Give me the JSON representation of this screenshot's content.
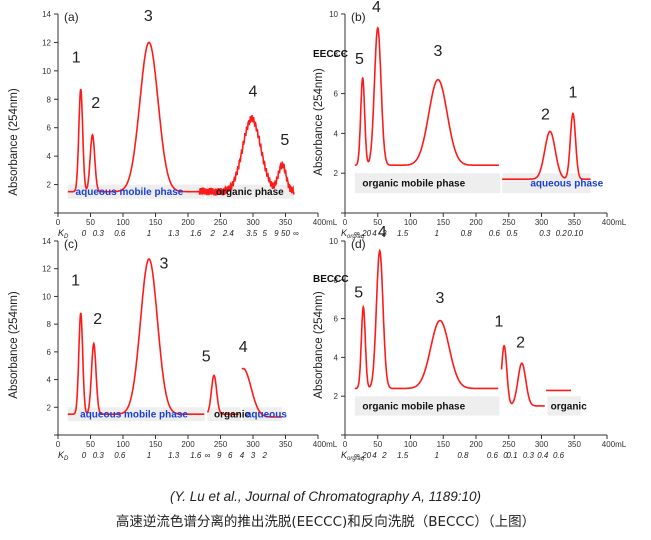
{
  "chart_data": [
    {
      "type": "line",
      "panel_label": "(a)",
      "ylabel": "Absorbance (254nm)",
      "xunit": "mL",
      "xlim": [
        0,
        400
      ],
      "ylim": [
        0,
        14
      ],
      "xticks": [
        0,
        50,
        100,
        150,
        200,
        250,
        300,
        350,
        400
      ],
      "yticks": [
        0,
        2,
        4,
        6,
        8,
        10,
        12,
        14
      ],
      "yticks_labeled": [
        2,
        4,
        6,
        8,
        10,
        12,
        14
      ],
      "k_axis_label": "K",
      "k_axis_sub": "D",
      "k_ticks": [
        {
          "x": 40,
          "t": "0"
        },
        {
          "x": 62,
          "t": "0.3"
        },
        {
          "x": 95,
          "t": "0.6"
        },
        {
          "x": 140,
          "t": "1"
        },
        {
          "x": 178,
          "t": "1.3"
        },
        {
          "x": 212,
          "t": "1.6"
        },
        {
          "x": 238,
          "t": "2"
        },
        {
          "x": 262,
          "t": "2.4"
        },
        {
          "x": 298,
          "t": "3.5"
        },
        {
          "x": 318,
          "t": "5"
        },
        {
          "x": 336,
          "t": "9"
        },
        {
          "x": 350,
          "t": "50"
        },
        {
          "x": 366,
          "t": "∞"
        }
      ],
      "baseline": 1.5,
      "baseline_segments": [
        [
          15,
          225,
          1.5
        ],
        [
          225,
          363,
          1.5
        ]
      ],
      "noisy_from": 218,
      "series": [
        {
          "values": [
            {
              "x": 35,
              "y": 8.7,
              "w": 3
            },
            {
              "x": 53,
              "y": 5.5,
              "w": 3.5
            },
            {
              "x": 140,
              "y": 12.0,
              "w": 14
            },
            {
              "x": 298,
              "y": 6.6,
              "w": 14
            },
            {
              "x": 345,
              "y": 3.4,
              "w": 6
            }
          ]
        }
      ],
      "peak_labels": [
        {
          "t": "1",
          "x": 28,
          "y": 10.6
        },
        {
          "t": "2",
          "x": 58,
          "y": 7.4
        },
        {
          "t": "3",
          "x": 139,
          "y": 13.5
        },
        {
          "t": "4",
          "x": 300,
          "y": 8.2
        },
        {
          "t": "5",
          "x": 349,
          "y": 4.8
        }
      ],
      "phase_bars": [
        {
          "x0": 15,
          "x1": 225,
          "text": "aqueous mobile phase",
          "color": "#1a3fd6",
          "align": "start",
          "tx": 27
        },
        {
          "x0": 228,
          "x1": 363,
          "text": "organic phase",
          "color": "#111111",
          "align": "start",
          "tx": 243
        }
      ]
    },
    {
      "type": "line",
      "panel_label": "(b)",
      "ylabel": "Absorbance (254nm)",
      "mode_label": "EECCC",
      "xunit": "mL",
      "xlim": [
        0,
        400
      ],
      "ylim": [
        0,
        10
      ],
      "xticks": [
        0,
        50,
        100,
        150,
        200,
        250,
        300,
        350,
        400
      ],
      "yticks": [
        0,
        2,
        4,
        6,
        8,
        10
      ],
      "yticks_labeled": [
        2,
        4,
        6,
        8,
        10
      ],
      "k_axis_label": "K",
      "k_axis_sub": "org/aq",
      "k_ticks": [
        {
          "x": 18,
          "t": "∞"
        },
        {
          "x": 33,
          "t": "20"
        },
        {
          "x": 45,
          "t": "4"
        },
        {
          "x": 60,
          "t": "2"
        },
        {
          "x": 88,
          "t": "1.5"
        },
        {
          "x": 140,
          "t": "1"
        },
        {
          "x": 185,
          "t": "0.8"
        },
        {
          "x": 228,
          "t": "0.6"
        },
        {
          "x": 255,
          "t": "0.5"
        },
        {
          "x": 305,
          "t": "0.3"
        },
        {
          "x": 330,
          "t": "0.2"
        },
        {
          "x": 348,
          "t": "0.1"
        },
        {
          "x": 360,
          "t": "0"
        }
      ],
      "baseline_segments": [
        [
          15,
          235,
          2.4
        ],
        [
          240,
          375,
          1.7
        ]
      ],
      "series": [
        {
          "values": [
            {
              "x": 27,
              "y": 6.8,
              "w": 3
            },
            {
              "x": 50,
              "y": 9.3,
              "w": 5
            },
            {
              "x": 142,
              "y": 6.7,
              "w": 14
            },
            {
              "x": 313,
              "y": 4.1,
              "w": 8
            },
            {
              "x": 348,
              "y": 5.0,
              "w": 4
            }
          ]
        }
      ],
      "peak_labels": [
        {
          "t": "5",
          "x": 22,
          "y": 7.5
        },
        {
          "t": "4",
          "x": 48,
          "y": 10.1
        },
        {
          "t": "3",
          "x": 142,
          "y": 7.9
        },
        {
          "t": "2",
          "x": 306,
          "y": 4.7
        },
        {
          "t": "1",
          "x": 348,
          "y": 5.8
        }
      ],
      "phase_bars": [
        {
          "x0": 15,
          "x1": 237,
          "text": "organic mobile phase",
          "color": "#111111",
          "align": "middle",
          "tx": 105
        },
        {
          "x0": 240,
          "x1": 375,
          "text": "aqueous phase",
          "color": "#1a3fd6",
          "align": "start",
          "tx": 283
        }
      ]
    },
    {
      "type": "line",
      "panel_label": "(c)",
      "ylabel": "Absorbance (254nm)",
      "xunit": "mL",
      "xlim": [
        0,
        400
      ],
      "ylim": [
        0,
        14
      ],
      "xticks": [
        0,
        50,
        100,
        150,
        200,
        250,
        300,
        350,
        400
      ],
      "yticks": [
        0,
        2,
        4,
        6,
        8,
        10,
        12,
        14
      ],
      "yticks_labeled": [
        2,
        4,
        6,
        8,
        10,
        12,
        14
      ],
      "k_axis_label": "K",
      "k_axis_sub": "D",
      "k_ticks": [
        {
          "x": 40,
          "t": "0"
        },
        {
          "x": 62,
          "t": "0.3"
        },
        {
          "x": 95,
          "t": "0.6"
        },
        {
          "x": 140,
          "t": "1"
        },
        {
          "x": 178,
          "t": "1.3"
        },
        {
          "x": 212,
          "t": "1.6"
        },
        {
          "x": 230,
          "t": "∞"
        },
        {
          "x": 248,
          "t": "9"
        },
        {
          "x": 265,
          "t": "6"
        },
        {
          "x": 283,
          "t": "4"
        },
        {
          "x": 300,
          "t": "3"
        },
        {
          "x": 318,
          "t": "2"
        }
      ],
      "baseline_segments": [
        [
          15,
          225,
          1.5
        ],
        [
          230,
          278,
          1.5
        ],
        [
          283,
          345,
          1.3
        ]
      ],
      "series": [
        {
          "values": [
            {
              "x": 35,
              "y": 8.8,
              "w": 3
            },
            {
              "x": 55,
              "y": 6.6,
              "w": 3.5
            },
            {
              "x": 140,
              "y": 12.7,
              "w": 13
            },
            {
              "x": 240,
              "y": 4.3,
              "w": 4
            },
            {
              "x": 285,
              "y": 4.8,
              "w": 12
            }
          ]
        }
      ],
      "peak_labels": [
        {
          "t": "1",
          "x": 27,
          "y": 10.8
        },
        {
          "t": "2",
          "x": 61,
          "y": 8.0
        },
        {
          "t": "3",
          "x": 163,
          "y": 12.0
        },
        {
          "t": "5",
          "x": 228,
          "y": 5.3
        },
        {
          "t": "4",
          "x": 285,
          "y": 6.0
        }
      ],
      "phase_bars": [
        {
          "x0": 15,
          "x1": 226,
          "text": "aqueous mobile phase",
          "color": "#1a3fd6",
          "align": "middle",
          "tx": 117
        },
        {
          "x0": 230,
          "x1": 281,
          "text": "organic",
          "color": "#111111",
          "align": "start",
          "tx": 240
        },
        {
          "x0": 284,
          "x1": 345,
          "text": "aqueous",
          "color": "#1a3fd6",
          "align": "start",
          "tx": 289
        }
      ]
    },
    {
      "type": "line",
      "panel_label": "(d)",
      "ylabel": "Absorbance (254nm)",
      "mode_label": "BECCC",
      "xunit": "mL",
      "xlim": [
        0,
        400
      ],
      "ylim": [
        0,
        10
      ],
      "xticks": [
        0,
        50,
        100,
        150,
        200,
        250,
        300,
        350,
        400
      ],
      "yticks": [
        0,
        2,
        4,
        6,
        8,
        10
      ],
      "yticks_labeled": [
        2,
        4,
        6,
        8,
        10
      ],
      "k_axis_label": "K",
      "k_axis_sub": "org/aq",
      "k_ticks": [
        {
          "x": 18,
          "t": "∞"
        },
        {
          "x": 33,
          "t": "20"
        },
        {
          "x": 45,
          "t": "4"
        },
        {
          "x": 60,
          "t": "2"
        },
        {
          "x": 88,
          "t": "1.5"
        },
        {
          "x": 140,
          "t": "1"
        },
        {
          "x": 180,
          "t": "0.8"
        },
        {
          "x": 225,
          "t": "0.6"
        },
        {
          "x": 245,
          "t": "0"
        },
        {
          "x": 255,
          "t": "0.1"
        },
        {
          "x": 280,
          "t": "0.3"
        },
        {
          "x": 302,
          "t": "0.4"
        },
        {
          "x": 326,
          "t": "0.6"
        }
      ],
      "baseline_segments": [
        [
          15,
          234,
          2.4
        ],
        [
          239,
          305,
          1.5
        ],
        [
          307,
          345,
          2.3
        ]
      ],
      "series": [
        {
          "values": [
            {
              "x": 28,
              "y": 6.6,
              "w": 3
            },
            {
              "x": 53,
              "y": 9.5,
              "w": 5
            },
            {
              "x": 145,
              "y": 5.9,
              "w": 14
            },
            {
              "x": 243,
              "y": 4.6,
              "w": 4
            },
            {
              "x": 270,
              "y": 3.7,
              "w": 6
            }
          ]
        }
      ],
      "peak_labels": [
        {
          "t": "5",
          "x": 21,
          "y": 7.1
        },
        {
          "t": "4",
          "x": 57,
          "y": 10.2
        },
        {
          "t": "3",
          "x": 145,
          "y": 6.8
        },
        {
          "t": "1",
          "x": 235,
          "y": 5.6
        },
        {
          "t": "2",
          "x": 268,
          "y": 4.5
        }
      ],
      "phase_bars": [
        {
          "x0": 15,
          "x1": 236,
          "text": "organic mobile phase",
          "color": "#111111",
          "align": "middle",
          "tx": 105
        },
        {
          "x0": 309,
          "x1": 360,
          "text": "organic",
          "color": "#111111",
          "align": "start",
          "tx": 314
        }
      ]
    }
  ],
  "caption": {
    "citation": "(Y. Lu et al., Journal of Chromatography A, 1189:10)",
    "title": "高速逆流色谱分离的推出洗脱(EECCC)和反向洗脱（BECCC）（上图）"
  },
  "colors": {
    "trace": "#ff1a1a",
    "axis": "#333333",
    "phase_bar": "#eeeeee",
    "aqueous_text": "#1a3fd6"
  }
}
